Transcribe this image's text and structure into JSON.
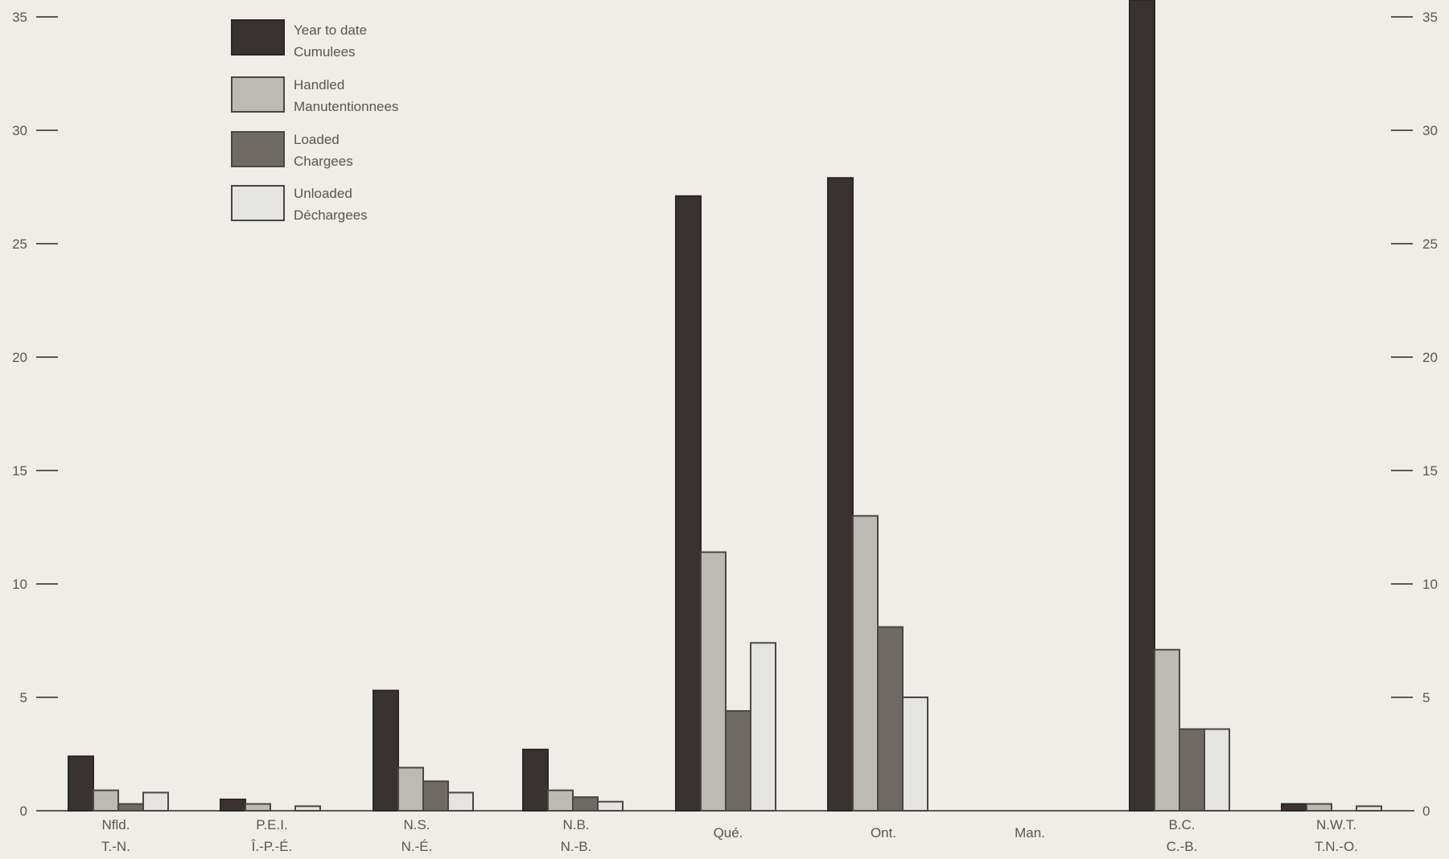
{
  "chart_data": {
    "type": "bar",
    "title": "",
    "xlabel": "",
    "ylabel": "",
    "ylim": [
      0,
      35
    ],
    "yticks": [
      0,
      5,
      10,
      15,
      20,
      25,
      30,
      35
    ],
    "right_yticks": [
      0,
      5,
      10,
      15,
      20,
      25,
      30,
      35
    ],
    "grid": false,
    "legend_position": "top-left",
    "categories": [
      {
        "line1": "Nfld.",
        "line2": "T.-N."
      },
      {
        "line1": "P.E.I.",
        "line2": "Î.-P.-É."
      },
      {
        "line1": "N.S.",
        "line2": "N.-É."
      },
      {
        "line1": "N.B.",
        "line2": "N.-B."
      },
      {
        "line1": "Qué.",
        "line2": ""
      },
      {
        "line1": "Ont.",
        "line2": ""
      },
      {
        "line1": "Man.",
        "line2": ""
      },
      {
        "line1": "B.C.",
        "line2": "C.-B."
      },
      {
        "line1": "N.W.T.",
        "line2": "T.N.-O."
      }
    ],
    "series": [
      {
        "name": "Year to date",
        "name_fr": "Cumulees",
        "values": [
          2.4,
          0.5,
          5.3,
          2.7,
          27.1,
          27.9,
          0.0,
          35.8,
          0.3
        ]
      },
      {
        "name": "Handled",
        "name_fr": "Manutentionnees",
        "values": [
          0.9,
          0.3,
          1.9,
          0.9,
          11.4,
          13.0,
          0.0,
          7.1,
          0.3
        ]
      },
      {
        "name": "Loaded",
        "name_fr": "Chargees",
        "values": [
          0.3,
          0.0,
          1.3,
          0.6,
          4.4,
          8.1,
          0.0,
          3.6,
          0.0
        ]
      },
      {
        "name": "Unloaded",
        "name_fr": "Déchargees",
        "values": [
          0.8,
          0.2,
          0.8,
          0.4,
          7.4,
          5.0,
          0.0,
          3.6,
          0.2
        ]
      }
    ],
    "colors": [
      "#3a3230",
      "#bcbab4",
      "#6f6a66",
      "#e4e4e0"
    ]
  }
}
